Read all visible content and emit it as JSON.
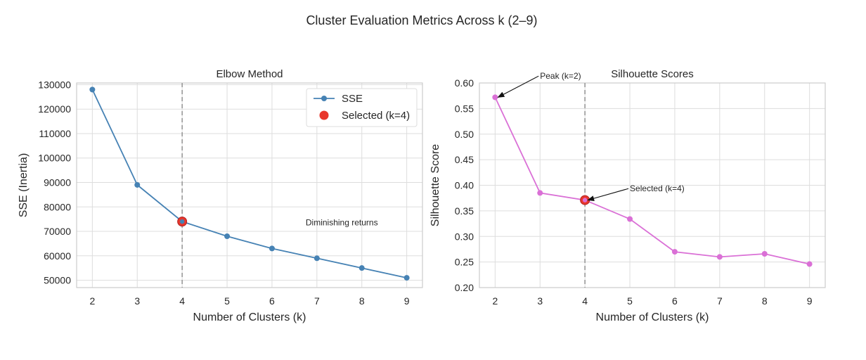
{
  "figure": {
    "suptitle": "Cluster Evaluation Metrics Across k (2–9)"
  },
  "colors": {
    "sse_line": "#4682b4",
    "silhouette_line": "#da70d6",
    "selected_marker": "#e8372c",
    "selected_edge": "#b22222",
    "vline": "#999999",
    "grid": "#dddddd",
    "spine": "#cccccc",
    "annotation_arrow": "#111111"
  },
  "chart_data": [
    {
      "type": "line",
      "title": "Elbow Method",
      "xlabel": "Number of Clusters (k)",
      "ylabel": "SSE (Inertia)",
      "x": [
        2,
        3,
        4,
        5,
        6,
        7,
        8,
        9
      ],
      "xlim": [
        1.65,
        9.35
      ],
      "ylim": [
        47000,
        130700
      ],
      "yticks": [
        50000,
        60000,
        70000,
        80000,
        90000,
        100000,
        110000,
        120000,
        130000
      ],
      "grid": true,
      "legend_position": "top-right",
      "series": [
        {
          "name": "SSE",
          "values": [
            128000,
            89000,
            74000,
            68000,
            63000,
            59000,
            55000,
            51000
          ]
        }
      ],
      "selected": {
        "name": "Selected (k=4)",
        "x": 4,
        "y": 74000
      },
      "vline_x": 4,
      "annotations": [
        {
          "text": "Diminishing returns",
          "x": 6.75,
          "y": 72500
        }
      ]
    },
    {
      "type": "line",
      "title": "Silhouette Scores",
      "xlabel": "Number of Clusters (k)",
      "ylabel": "Silhouette Score",
      "x": [
        2,
        3,
        4,
        5,
        6,
        7,
        8,
        9
      ],
      "xlim": [
        1.65,
        9.35
      ],
      "ylim": [
        0.2,
        0.6
      ],
      "yticks": [
        0.2,
        0.25,
        0.3,
        0.35,
        0.4,
        0.45,
        0.5,
        0.55,
        0.6
      ],
      "grid": true,
      "series": [
        {
          "values": [
            0.572,
            0.385,
            0.371,
            0.334,
            0.27,
            0.26,
            0.266,
            0.246
          ]
        }
      ],
      "selected": {
        "x": 4,
        "y": 0.371
      },
      "vline_x": 4,
      "annotations": [
        {
          "text": "Peak (k=2)",
          "x": 3.0,
          "y": 0.608,
          "target_x": 2,
          "target_y": 0.572
        },
        {
          "text": "Selected (k=4)",
          "x": 5.0,
          "y": 0.388,
          "target_x": 4,
          "target_y": 0.371
        }
      ]
    }
  ]
}
